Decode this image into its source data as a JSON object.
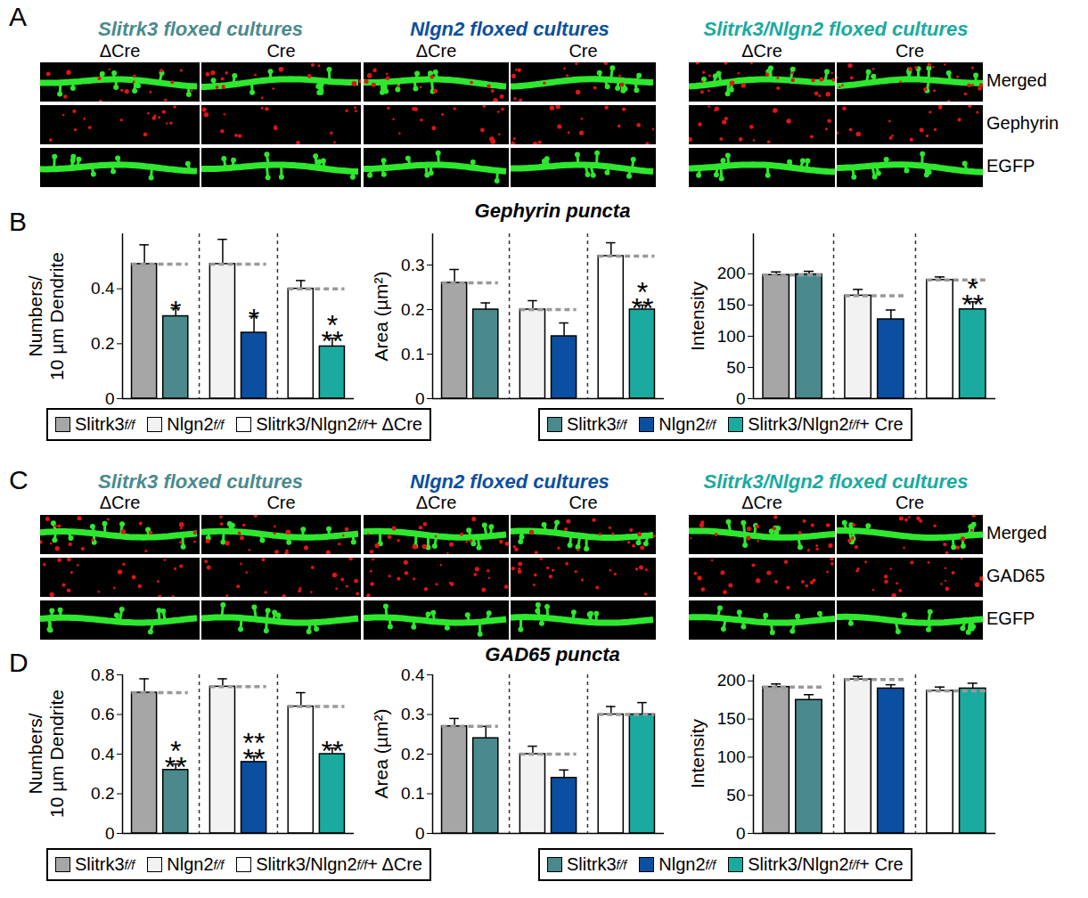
{
  "chart_data": [
    {
      "type": "bar",
      "ylabel": [
        "Numbers/",
        "10 µm Dendrite"
      ],
      "categories": [
        null,
        null,
        null,
        null,
        null,
        null
      ],
      "values": [
        0.49,
        0.3,
        0.49,
        0.24,
        0.4,
        0.19
      ],
      "errors": [
        0.07,
        0.03,
        0.09,
        0.06,
        0.03,
        0.03
      ],
      "colors": [
        "#a6a6a6",
        "#4a8a8c",
        "#f2f2f2",
        "#0a4fa0",
        "#ffffff",
        "#1aaa9f"
      ],
      "significance": [
        null,
        "*",
        null,
        "*",
        null,
        "***"
      ],
      "ylim": [
        0,
        0.6
      ],
      "yticks": [
        0,
        0.2,
        0.4
      ]
    },
    {
      "type": "bar",
      "ylabel": [
        "Area (µm²)"
      ],
      "categories": [
        null,
        null,
        null,
        null,
        null,
        null
      ],
      "values": [
        0.26,
        0.2,
        0.2,
        0.14,
        0.32,
        0.2
      ],
      "errors": [
        0.03,
        0.015,
        0.02,
        0.03,
        0.03,
        0.01
      ],
      "colors": [
        "#a6a6a6",
        "#4a8a8c",
        "#f2f2f2",
        "#0a4fa0",
        "#ffffff",
        "#1aaa9f"
      ],
      "significance": [
        null,
        null,
        null,
        null,
        null,
        "***"
      ],
      "ylim": [
        0,
        0.37
      ],
      "yticks": [
        0,
        0.1,
        0.2,
        0.3
      ]
    },
    {
      "type": "bar",
      "ylabel": [
        "Intensity"
      ],
      "categories": [
        null,
        null,
        null,
        null,
        null,
        null
      ],
      "values": [
        198,
        199,
        165,
        127,
        190,
        143
      ],
      "errors": [
        5,
        5,
        10,
        15,
        5,
        12
      ],
      "colors": [
        "#a6a6a6",
        "#4a8a8c",
        "#f2f2f2",
        "#0a4fa0",
        "#ffffff",
        "#1aaa9f"
      ],
      "significance": [
        null,
        null,
        null,
        null,
        null,
        "***"
      ],
      "ylim": [
        0,
        264
      ],
      "yticks": [
        0,
        50,
        100,
        150,
        200
      ]
    },
    {
      "type": "bar",
      "ylabel": [
        "Numbers/",
        "10 µm Dendrite"
      ],
      "categories": [
        null,
        null,
        null,
        null,
        null,
        null
      ],
      "values": [
        0.71,
        0.32,
        0.74,
        0.36,
        0.64,
        0.4
      ],
      "errors": [
        0.07,
        0.03,
        0.04,
        0.03,
        0.07,
        0.03
      ],
      "colors": [
        "#a6a6a6",
        "#4a8a8c",
        "#f2f2f2",
        "#0a4fa0",
        "#ffffff",
        "#1aaa9f"
      ],
      "significance": [
        null,
        "***",
        null,
        "****",
        null,
        "**"
      ],
      "ylim": [
        0,
        0.8
      ],
      "yticks": [
        0,
        0.2,
        0.4,
        0.6,
        0.8
      ]
    },
    {
      "type": "bar",
      "ylabel": [
        "Area (µm²)"
      ],
      "categories": [
        null,
        null,
        null,
        null,
        null,
        null
      ],
      "values": [
        0.27,
        0.24,
        0.2,
        0.14,
        0.3,
        0.3
      ],
      "errors": [
        0.02,
        0.03,
        0.02,
        0.02,
        0.02,
        0.03
      ],
      "colors": [
        "#a6a6a6",
        "#4a8a8c",
        "#f2f2f2",
        "#0a4fa0",
        "#ffffff",
        "#1aaa9f"
      ],
      "significance": [
        null,
        null,
        null,
        null,
        null,
        null
      ],
      "ylim": [
        0,
        0.4
      ],
      "yticks": [
        0,
        0.1,
        0.2,
        0.3,
        0.4
      ]
    },
    {
      "type": "bar",
      "ylabel": [
        "Intensity"
      ],
      "categories": [
        null,
        null,
        null,
        null,
        null,
        null
      ],
      "values": [
        192,
        175,
        202,
        190,
        187,
        190
      ],
      "errors": [
        4,
        7,
        4,
        5,
        5,
        7
      ],
      "colors": [
        "#a6a6a6",
        "#4a8a8c",
        "#f2f2f2",
        "#0a4fa0",
        "#ffffff",
        "#1aaa9f"
      ],
      "significance": [
        null,
        null,
        null,
        null,
        null,
        null
      ],
      "ylim": [
        0,
        208
      ],
      "yticks": [
        0,
        50,
        100,
        150,
        200
      ]
    }
  ],
  "figure": {
    "panel_letters": [
      "A",
      "B",
      "C",
      "D"
    ],
    "chart_titles": [
      "Gephyrin puncta",
      "GAD65 puncta"
    ],
    "image_groups": [
      {
        "title": "Slitrk3 floxed cultures",
        "color": "#4a8a8c"
      },
      {
        "title": "Nlgn2 floxed cultures",
        "color": "#0a4fa0"
      },
      {
        "title": "Slitrk3/Nlgn2 floxed cultures",
        "color": "#1aaa9f"
      }
    ],
    "conditions": [
      "ΔCre",
      "Cre"
    ],
    "image_rows": [
      [
        "Merged",
        "Gephyrin",
        "EGFP"
      ],
      [
        "Merged",
        "GAD65",
        "EGFP"
      ]
    ],
    "legend_left": [
      {
        "text": "Slitrk3",
        "sup": "f/f",
        "after": null,
        "color": "#a6a6a6"
      },
      {
        "text": "Nlgn2",
        "sup": "f/f",
        "after": null,
        "color": "#f2f2f2"
      },
      {
        "text": "Slitrk3/Nlgn2",
        "sup": "f/f",
        "after": " + ΔCre",
        "color": "#ffffff"
      }
    ],
    "legend_right": [
      {
        "text": "Slitrk3",
        "sup": "f/f",
        "after": null,
        "color": "#4a8a8c"
      },
      {
        "text": "Nlgn2",
        "sup": "f/f",
        "after": null,
        "color": "#0a4fa0"
      },
      {
        "text": "Slitrk3/Nlgn2",
        "sup": "f/f",
        "after": " + Cre",
        "color": "#1aaa9f"
      }
    ]
  }
}
